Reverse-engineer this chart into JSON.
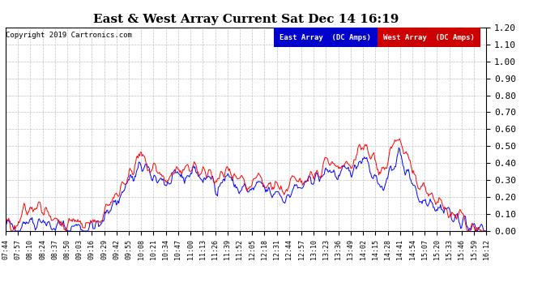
{
  "title": "East & West Array Current Sat Dec 14 16:19",
  "copyright": "Copyright 2019 Cartronics.com",
  "east_label": "East Array  (DC Amps)",
  "west_label": "West Array  (DC Amps)",
  "east_color": "#0000ff",
  "west_color": "#ff0000",
  "east_legend_bg": "#0000cc",
  "west_legend_bg": "#cc0000",
  "ylim": [
    0.0,
    1.2
  ],
  "yticks": [
    0.0,
    0.1,
    0.2,
    0.3,
    0.4,
    0.5,
    0.6,
    0.7,
    0.8,
    0.9,
    1.0,
    1.1,
    1.2
  ],
  "background_color": "#ffffff",
  "grid_color": "#bbbbbb",
  "x_labels": [
    "07:44",
    "07:57",
    "08:10",
    "08:24",
    "08:37",
    "08:50",
    "09:03",
    "09:16",
    "09:29",
    "09:42",
    "09:55",
    "10:08",
    "10:21",
    "10:34",
    "10:47",
    "11:00",
    "11:13",
    "11:26",
    "11:39",
    "11:52",
    "12:05",
    "12:18",
    "12:31",
    "12:44",
    "12:57",
    "13:10",
    "13:23",
    "13:36",
    "13:49",
    "14:02",
    "14:15",
    "14:28",
    "14:41",
    "14:54",
    "15:07",
    "15:20",
    "15:33",
    "15:46",
    "15:59",
    "16:12"
  ],
  "figsize": [
    6.9,
    3.75
  ],
  "dpi": 100
}
